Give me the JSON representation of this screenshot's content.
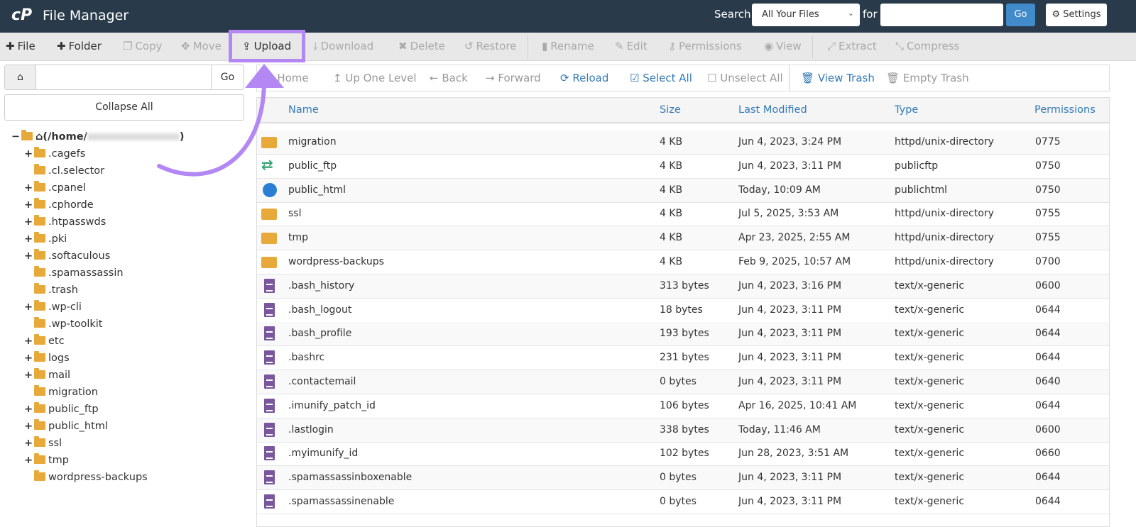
{
  "header": {
    "logo": "cP",
    "title": "File Manager",
    "search_label": "Search",
    "search_scope": "All Your Files",
    "for_label": "for",
    "search_value": "",
    "go_label": "Go",
    "settings_label": "Settings"
  },
  "toolbar": [
    {
      "label": "File",
      "icon": "plus",
      "enabled": true
    },
    {
      "label": "Folder",
      "icon": "plus",
      "enabled": true
    },
    {
      "label": "Copy",
      "icon": "copy",
      "enabled": false
    },
    {
      "label": "Move",
      "icon": "move",
      "enabled": false
    },
    {
      "label": "Upload",
      "icon": "upload",
      "enabled": true
    },
    {
      "label": "Download",
      "icon": "download",
      "enabled": false
    },
    {
      "label": "Delete",
      "icon": "times",
      "enabled": false
    },
    {
      "label": "Restore",
      "icon": "undo",
      "enabled": false
    },
    {
      "label": "Rename",
      "icon": "file",
      "enabled": false
    },
    {
      "label": "Edit",
      "icon": "pencil",
      "enabled": false
    },
    {
      "label": "Permissions",
      "icon": "key",
      "enabled": false
    },
    {
      "label": "View",
      "icon": "eye",
      "enabled": false
    },
    {
      "label": "Extract",
      "icon": "expand",
      "enabled": false
    },
    {
      "label": "Compress",
      "icon": "compress",
      "enabled": false
    }
  ],
  "path": {
    "value": "",
    "go_label": "Go",
    "collapse_label": "Collapse All"
  },
  "nav": [
    {
      "label": "Home",
      "icon": "home"
    },
    {
      "label": "Up One Level",
      "icon": "level-up"
    },
    {
      "label": "Back",
      "icon": "arrow-left"
    },
    {
      "label": "Forward",
      "icon": "arrow-right"
    },
    {
      "label": "Reload",
      "icon": "refresh"
    },
    {
      "label": "Select All",
      "icon": "check-square"
    },
    {
      "label": "Unselect All",
      "icon": "square"
    },
    {
      "label": "View Trash",
      "icon": "trash"
    },
    {
      "label": "Empty Trash",
      "icon": "trash"
    }
  ],
  "tree": {
    "root": "(/home/",
    "root_suffix": ")",
    "items": [
      {
        "name": ".cagefs",
        "expandable": true
      },
      {
        "name": ".cl.selector",
        "expandable": false
      },
      {
        "name": ".cpanel",
        "expandable": true
      },
      {
        "name": ".cphorde",
        "expandable": true
      },
      {
        "name": ".htpasswds",
        "expandable": true
      },
      {
        "name": ".pki",
        "expandable": true
      },
      {
        "name": ".softaculous",
        "expandable": true
      },
      {
        "name": ".spamassassin",
        "expandable": false
      },
      {
        "name": ".trash",
        "expandable": false
      },
      {
        "name": ".wp-cli",
        "expandable": true
      },
      {
        "name": ".wp-toolkit",
        "expandable": false
      },
      {
        "name": "etc",
        "expandable": true
      },
      {
        "name": "logs",
        "expandable": true
      },
      {
        "name": "mail",
        "expandable": true
      },
      {
        "name": "migration",
        "expandable": false
      },
      {
        "name": "public_ftp",
        "expandable": true
      },
      {
        "name": "public_html",
        "expandable": true
      },
      {
        "name": "ssl",
        "expandable": true
      },
      {
        "name": "tmp",
        "expandable": true
      },
      {
        "name": "wordpress-backups",
        "expandable": false
      }
    ]
  },
  "table": {
    "columns": [
      "Name",
      "Size",
      "Last Modified",
      "Type",
      "Permissions"
    ],
    "rows": [
      {
        "icon": "folder",
        "name": "migration",
        "size": "4 KB",
        "modified": "Jun 4, 2023, 3:24 PM",
        "type": "httpd/unix-directory",
        "perms": "0775"
      },
      {
        "icon": "ftp",
        "name": "public_ftp",
        "size": "4 KB",
        "modified": "Jun 4, 2023, 3:11 PM",
        "type": "publicftp",
        "perms": "0750"
      },
      {
        "icon": "globe",
        "name": "public_html",
        "size": "4 KB",
        "modified": "Today, 10:09 AM",
        "type": "publichtml",
        "perms": "0750"
      },
      {
        "icon": "folder",
        "name": "ssl",
        "size": "4 KB",
        "modified": "Jul 5, 2025, 3:53 AM",
        "type": "httpd/unix-directory",
        "perms": "0755"
      },
      {
        "icon": "folder",
        "name": "tmp",
        "size": "4 KB",
        "modified": "Apr 23, 2025, 2:55 AM",
        "type": "httpd/unix-directory",
        "perms": "0755"
      },
      {
        "icon": "folder",
        "name": "wordpress-backups",
        "size": "4 KB",
        "modified": "Feb 9, 2025, 10:57 AM",
        "type": "httpd/unix-directory",
        "perms": "0700"
      },
      {
        "icon": "file",
        "name": ".bash_history",
        "size": "313 bytes",
        "modified": "Jun 4, 2023, 3:16 PM",
        "type": "text/x-generic",
        "perms": "0600"
      },
      {
        "icon": "file",
        "name": ".bash_logout",
        "size": "18 bytes",
        "modified": "Jun 4, 2023, 3:11 PM",
        "type": "text/x-generic",
        "perms": "0644"
      },
      {
        "icon": "file",
        "name": ".bash_profile",
        "size": "193 bytes",
        "modified": "Jun 4, 2023, 3:11 PM",
        "type": "text/x-generic",
        "perms": "0644"
      },
      {
        "icon": "file",
        "name": ".bashrc",
        "size": "231 bytes",
        "modified": "Jun 4, 2023, 3:11 PM",
        "type": "text/x-generic",
        "perms": "0644"
      },
      {
        "icon": "file",
        "name": ".contactemail",
        "size": "0 bytes",
        "modified": "Jun 4, 2023, 3:11 PM",
        "type": "text/x-generic",
        "perms": "0640"
      },
      {
        "icon": "file",
        "name": ".imunify_patch_id",
        "size": "106 bytes",
        "modified": "Apr 16, 2025, 10:41 AM",
        "type": "text/x-generic",
        "perms": "0644"
      },
      {
        "icon": "file",
        "name": ".lastlogin",
        "size": "338 bytes",
        "modified": "Today, 11:46 AM",
        "type": "text/x-generic",
        "perms": "0600"
      },
      {
        "icon": "file",
        "name": ".myimunify_id",
        "size": "102 bytes",
        "modified": "Jun 28, 2023, 3:51 AM",
        "type": "text/x-generic",
        "perms": "0660"
      },
      {
        "icon": "file",
        "name": ".spamassassinboxenable",
        "size": "0 bytes",
        "modified": "Jun 4, 2023, 3:11 PM",
        "type": "text/x-generic",
        "perms": "0644"
      },
      {
        "icon": "file",
        "name": ".spamassassinenable",
        "size": "0 bytes",
        "modified": "Jun 4, 2023, 3:11 PM",
        "type": "text/x-generic",
        "perms": "0644"
      }
    ]
  },
  "colors": {
    "header_bg": "#293a4a",
    "accent": "#337ab7",
    "highlight": "#b388f4",
    "folder": "#e8a93b",
    "file": "#7a569e"
  }
}
